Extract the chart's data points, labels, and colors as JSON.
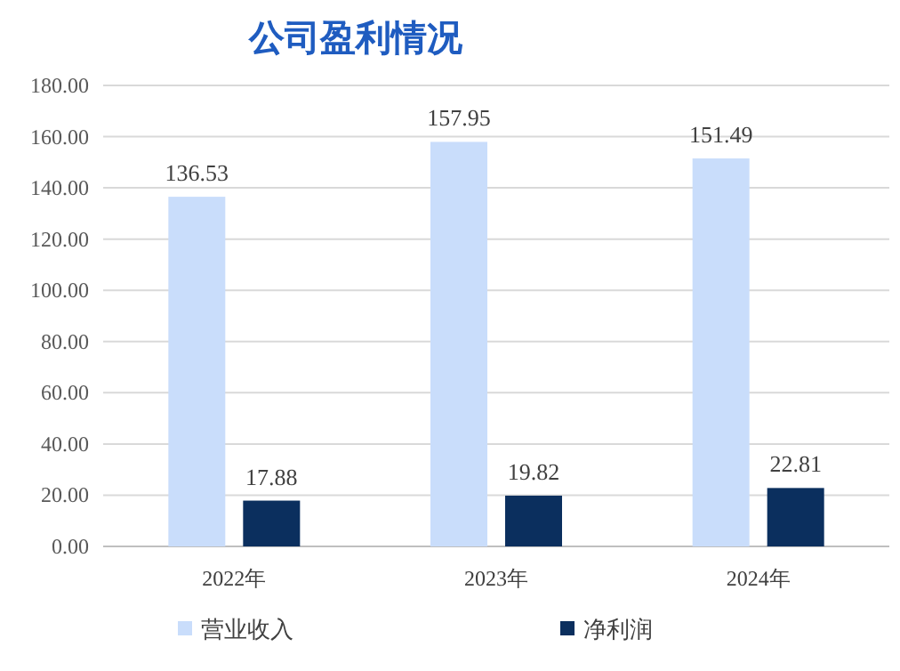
{
  "chart_data": {
    "type": "bar",
    "title": "公司盈利情况",
    "categories": [
      "2022年",
      "2023年",
      "2024年"
    ],
    "series": [
      {
        "name": "营业收入",
        "color": "#c9ddfb",
        "values": [
          136.53,
          157.95,
          151.49
        ]
      },
      {
        "name": "净利润",
        "color": "#0b2f5e",
        "values": [
          17.88,
          19.82,
          22.81
        ]
      }
    ],
    "ylim": [
      0,
      180
    ],
    "yticks": [
      {
        "value": 0,
        "label": "0.00"
      },
      {
        "value": 20,
        "label": "20.00"
      },
      {
        "value": 40,
        "label": "40.00"
      },
      {
        "value": 60,
        "label": "60.00"
      },
      {
        "value": 80,
        "label": "80.00"
      },
      {
        "value": 100,
        "label": "100.00"
      },
      {
        "value": 120,
        "label": "120.00"
      },
      {
        "value": 140,
        "label": "140.00"
      },
      {
        "value": 160,
        "label": "160.00"
      },
      {
        "value": 180,
        "label": "180.00"
      }
    ],
    "grid": "y",
    "legend": "bottom",
    "data_labels": true
  }
}
